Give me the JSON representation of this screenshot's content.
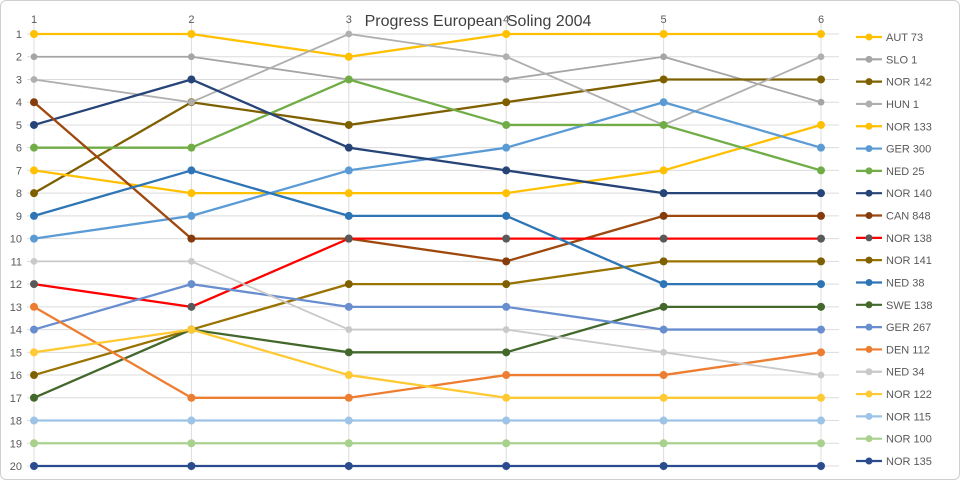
{
  "chart_data": {
    "type": "line",
    "subtype": "bump-ranking",
    "title": "Progress European Soling 2004",
    "xlabel": "",
    "ylabel": "",
    "x": [
      1,
      2,
      3,
      4,
      5,
      6
    ],
    "x_tick_labels": [
      "1",
      "2",
      "3",
      "4",
      "5",
      "6"
    ],
    "y_tick_labels": [
      "1",
      "2",
      "3",
      "4",
      "5",
      "6",
      "7",
      "8",
      "9",
      "10",
      "11",
      "12",
      "13",
      "14",
      "15",
      "16",
      "17",
      "18",
      "19",
      "20"
    ],
    "y_axis": {
      "min": 1,
      "max": 20,
      "inverted": true,
      "meaning": "position"
    },
    "grid": true,
    "legend_position": "right",
    "series": [
      {
        "name": "AUT 73",
        "color": "#FFC000",
        "marker_color": "#FFC000",
        "values": [
          1,
          1,
          2,
          1,
          1,
          1
        ]
      },
      {
        "name": "SLO 1",
        "color": "#A5A5A5",
        "marker_color": "#A5A5A5",
        "values": [
          2,
          2,
          3,
          3,
          2,
          4
        ]
      },
      {
        "name": "NOR 142",
        "color": "#7F6000",
        "marker_color": "#7F6000",
        "values": [
          8,
          4,
          5,
          4,
          3,
          3
        ]
      },
      {
        "name": "HUN 1",
        "color": "#AFAFAF",
        "marker_color": "#AFAFAF",
        "values": [
          3,
          4,
          1,
          2,
          5,
          2
        ]
      },
      {
        "name": "NOR 133",
        "color": "#FFC000",
        "marker_color": "#FFC000",
        "values": [
          7,
          8,
          8,
          8,
          7,
          5
        ]
      },
      {
        "name": "GER 300",
        "color": "#5B9BD5",
        "marker_color": "#5B9BD5",
        "values": [
          10,
          9,
          7,
          6,
          4,
          6
        ]
      },
      {
        "name": "NED 25",
        "color": "#70AD47",
        "marker_color": "#70AD47",
        "values": [
          6,
          6,
          3,
          5,
          5,
          7
        ]
      },
      {
        "name": "NOR 140",
        "color": "#264478",
        "marker_color": "#264478",
        "values": [
          5,
          3,
          6,
          7,
          8,
          8
        ]
      },
      {
        "name": "CAN 848",
        "color": "#9E480E",
        "marker_color": "#843C0C",
        "values": [
          4,
          10,
          10,
          11,
          9,
          9
        ]
      },
      {
        "name": "NOR 138",
        "color": "#FF0000",
        "marker_color": "#595959",
        "values": [
          12,
          13,
          10,
          10,
          10,
          10
        ]
      },
      {
        "name": "NOR 141",
        "color": "#997300",
        "marker_color": "#7F6000",
        "values": [
          16,
          14,
          12,
          12,
          11,
          11
        ]
      },
      {
        "name": "NED 38",
        "color": "#2E75B6",
        "marker_color": "#2E75B6",
        "values": [
          9,
          7,
          9,
          9,
          12,
          12
        ]
      },
      {
        "name": "SWE 138",
        "color": "#43682B",
        "marker_color": "#43682B",
        "values": [
          17,
          14,
          15,
          15,
          13,
          13
        ]
      },
      {
        "name": "GER 267",
        "color": "#698ED0",
        "marker_color": "#698ED0",
        "values": [
          14,
          12,
          13,
          13,
          14,
          14
        ]
      },
      {
        "name": "DEN 112",
        "color": "#ED7D31",
        "marker_color": "#ED7D31",
        "values": [
          13,
          17,
          17,
          16,
          16,
          15
        ]
      },
      {
        "name": "NED 34",
        "color": "#C9C9C9",
        "marker_color": "#C9C9C9",
        "values": [
          11,
          11,
          14,
          14,
          15,
          16
        ]
      },
      {
        "name": "NOR 122",
        "color": "#FFC933",
        "marker_color": "#FFC933",
        "values": [
          15,
          14,
          16,
          17,
          17,
          17
        ]
      },
      {
        "name": "NOR 115",
        "color": "#9DC3E6",
        "marker_color": "#9DC3E6",
        "values": [
          18,
          18,
          18,
          18,
          18,
          18
        ]
      },
      {
        "name": "NOR 100",
        "color": "#A9D18E",
        "marker_color": "#A9D18E",
        "values": [
          19,
          19,
          19,
          19,
          19,
          19
        ]
      },
      {
        "name": "NOR 135",
        "color": "#2A4B8D",
        "marker_color": "#2A4B8D",
        "values": [
          20,
          20,
          20,
          20,
          20,
          20
        ]
      }
    ],
    "style": {
      "gridline_color": "#DCDCDC",
      "axis_text_color": "#595959",
      "title_color": "#404040",
      "background": "#FFFFFF"
    }
  }
}
